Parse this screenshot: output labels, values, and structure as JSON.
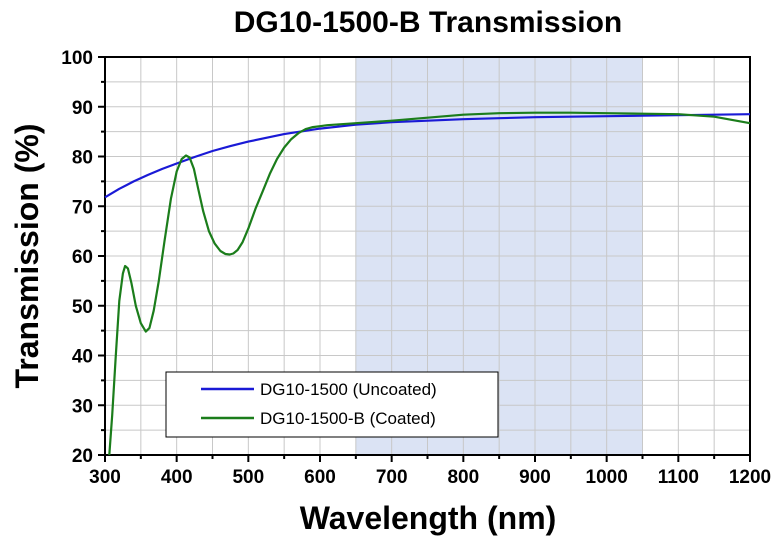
{
  "chart_data": {
    "type": "line",
    "title": "DG10-1500-B Transmission",
    "xlabel": "Wavelength (nm)",
    "ylabel": "Transmission (%)",
    "xlim": [
      300,
      1200
    ],
    "ylim": [
      20,
      100
    ],
    "xticks": [
      300,
      400,
      500,
      600,
      700,
      800,
      900,
      1000,
      1100,
      1200
    ],
    "yticks": [
      20,
      30,
      40,
      50,
      60,
      70,
      80,
      90,
      100
    ],
    "x_minor_step": 50,
    "y_minor_step": 5,
    "grid": true,
    "highlight_band": {
      "x_range": [
        650,
        1050
      ],
      "color": "#dbe3f4"
    },
    "legend_position": "bottom-left",
    "series": [
      {
        "name": "DG10-1500 (Uncoated)",
        "color": "#1a1ad6",
        "x": [
          300,
          320,
          340,
          360,
          380,
          400,
          425,
          450,
          475,
          500,
          550,
          600,
          650,
          700,
          750,
          800,
          850,
          900,
          950,
          1000,
          1050,
          1100,
          1150,
          1200
        ],
        "y": [
          71.8,
          73.5,
          75.0,
          76.3,
          77.5,
          78.6,
          79.9,
          81.1,
          82.1,
          83.0,
          84.5,
          85.6,
          86.4,
          86.9,
          87.2,
          87.5,
          87.7,
          87.9,
          88.0,
          88.1,
          88.2,
          88.3,
          88.4,
          88.5
        ]
      },
      {
        "name": "DG10-1500-B (Coated)",
        "color": "#1b7d1b",
        "x": [
          306,
          310,
          315,
          320,
          325,
          328,
          332,
          337,
          343,
          350,
          357,
          362,
          368,
          375,
          383,
          392,
          400,
          407,
          413,
          418,
          424,
          430,
          437,
          445,
          453,
          461,
          468,
          474,
          479,
          485,
          492,
          500,
          510,
          520,
          530,
          540,
          550,
          560,
          570,
          580,
          590,
          600,
          610,
          620,
          630,
          640,
          650,
          700,
          750,
          800,
          850,
          900,
          950,
          1000,
          1050,
          1100,
          1150,
          1200
        ],
        "y": [
          20.0,
          28.0,
          40.0,
          51.0,
          56.5,
          58.0,
          57.5,
          54.5,
          50.0,
          46.5,
          44.8,
          45.5,
          49.0,
          55.0,
          63.0,
          71.5,
          77.0,
          79.5,
          80.2,
          79.8,
          77.5,
          73.5,
          69.0,
          65.0,
          62.5,
          61.0,
          60.4,
          60.3,
          60.5,
          61.2,
          62.8,
          65.5,
          69.5,
          73.0,
          76.5,
          79.5,
          81.8,
          83.5,
          84.7,
          85.5,
          85.9,
          86.1,
          86.3,
          86.4,
          86.5,
          86.6,
          86.7,
          87.2,
          87.8,
          88.4,
          88.7,
          88.8,
          88.8,
          88.7,
          88.6,
          88.5,
          88.0,
          86.7
        ]
      }
    ]
  }
}
